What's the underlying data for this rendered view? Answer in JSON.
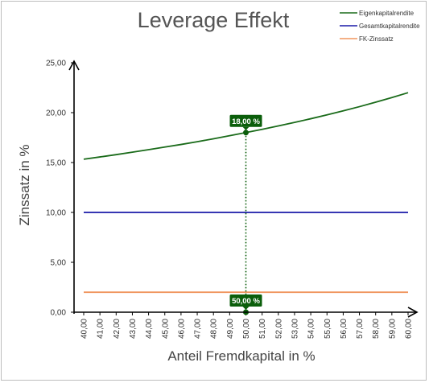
{
  "chart_data": {
    "type": "line",
    "title": "Leverage Effekt",
    "xlabel": "Anteil Fremdkapital in %",
    "ylabel": "Zinssatz in %",
    "xlim": [
      40,
      60
    ],
    "ylim": [
      0,
      25
    ],
    "x_ticks": [
      "40,00",
      "41,00",
      "42,00",
      "43,00",
      "44,00",
      "45,00",
      "46,00",
      "47,00",
      "48,00",
      "49,00",
      "50,00",
      "51,00",
      "52,00",
      "53,00",
      "54,00",
      "55,00",
      "56,00",
      "57,00",
      "58,00",
      "59,00",
      "60,00"
    ],
    "y_ticks": [
      "0,00",
      "5,00",
      "10,00",
      "15,00",
      "20,00",
      "25,00"
    ],
    "x": [
      40,
      41,
      42,
      43,
      44,
      45,
      46,
      47,
      48,
      49,
      50,
      51,
      52,
      53,
      54,
      55,
      56,
      57,
      58,
      59,
      60
    ],
    "series": [
      {
        "name": "Eigenkapitalrendite",
        "color": "#1a6b1a",
        "values": [
          15.33,
          15.56,
          15.79,
          16.04,
          16.29,
          16.55,
          16.81,
          17.09,
          17.38,
          17.69,
          18.0,
          18.33,
          18.67,
          19.02,
          19.39,
          19.78,
          20.18,
          20.6,
          21.05,
          21.51,
          22.0
        ]
      },
      {
        "name": "Gesamtkapitalrendite",
        "color": "#1a1aa8",
        "values": [
          10,
          10,
          10,
          10,
          10,
          10,
          10,
          10,
          10,
          10,
          10,
          10,
          10,
          10,
          10,
          10,
          10,
          10,
          10,
          10,
          10
        ]
      },
      {
        "name": "FK-Zinssatz",
        "color": "#f0955e",
        "values": [
          2,
          2,
          2,
          2,
          2,
          2,
          2,
          2,
          2,
          2,
          2,
          2,
          2,
          2,
          2,
          2,
          2,
          2,
          2,
          2,
          2
        ]
      }
    ],
    "legend_position": "top-right",
    "grid": false,
    "marker": {
      "x": 50,
      "y": 18,
      "point_label": "18,00 %",
      "axis_label": "50,00 %",
      "color": "#0b5e0b"
    }
  }
}
